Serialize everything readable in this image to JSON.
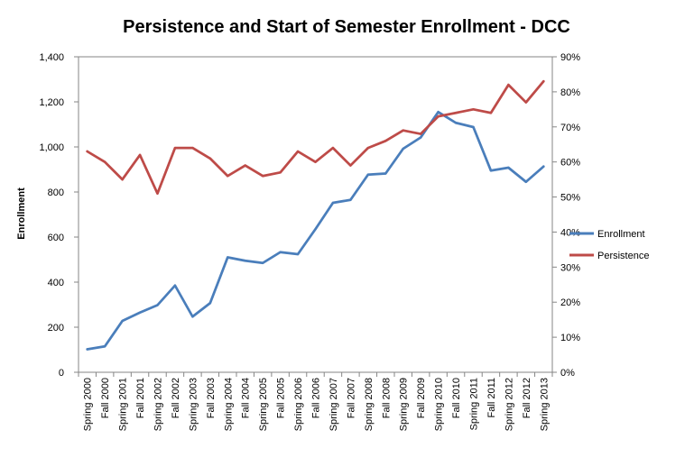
{
  "chart_data": {
    "type": "line",
    "title": "Persistence and  Start of Semester Enrollment - DCC",
    "ylabel": "Enrollment",
    "y2label": "",
    "ylim": [
      0,
      1400
    ],
    "y_ticks": [
      "0",
      "200",
      "400",
      "600",
      "800",
      "1,000",
      "1,200",
      "1,400"
    ],
    "y_tick_values": [
      0,
      200,
      400,
      600,
      800,
      1000,
      1200,
      1400
    ],
    "y2lim": [
      0,
      90
    ],
    "y2_ticks": [
      "0%",
      "10%",
      "20%",
      "30%",
      "40%",
      "50%",
      "60%",
      "70%",
      "80%",
      "90%"
    ],
    "y2_tick_values": [
      0,
      10,
      20,
      30,
      40,
      50,
      60,
      70,
      80,
      90
    ],
    "grid": false,
    "legend_position": "right",
    "categories": [
      "Spring 2000",
      "Fall 2000",
      "Spring 2001",
      "Fall 2001",
      "Spring 2002",
      "Fall 2002",
      "Spring 2003",
      "Fall 2003",
      "Spring 2004",
      "Fall 2004",
      "Spring 2005",
      "Fall 2005",
      "Spring 2006",
      "Fall 2006",
      "Spring 2007",
      "Fall 2007",
      "Spring 2008",
      "Fall 2008",
      "Spring 2009",
      "Fall 2009",
      "Spring 2010",
      "Fall 2010",
      "Spring 2011",
      "Fall 2011",
      "Spring 2012",
      "Fall 2012",
      "Spring 2013"
    ],
    "series": [
      {
        "name": "Enrollment",
        "axis": "left",
        "color": "#4a7ebb",
        "values": [
          102,
          115,
          228,
          265,
          298,
          385,
          247,
          307,
          510,
          495,
          485,
          533,
          524,
          635,
          752,
          765,
          877,
          882,
          992,
          1042,
          1155,
          1107,
          1088,
          895,
          908,
          845,
          913
        ]
      },
      {
        "name": "Persistence",
        "axis": "right",
        "color": "#be4b48",
        "values": [
          63,
          60,
          55,
          62,
          51,
          64,
          64,
          61,
          56,
          59,
          56,
          57,
          63,
          60,
          64,
          59,
          64,
          66,
          69,
          68,
          73,
          74,
          75,
          74,
          82,
          77,
          83
        ]
      }
    ]
  }
}
